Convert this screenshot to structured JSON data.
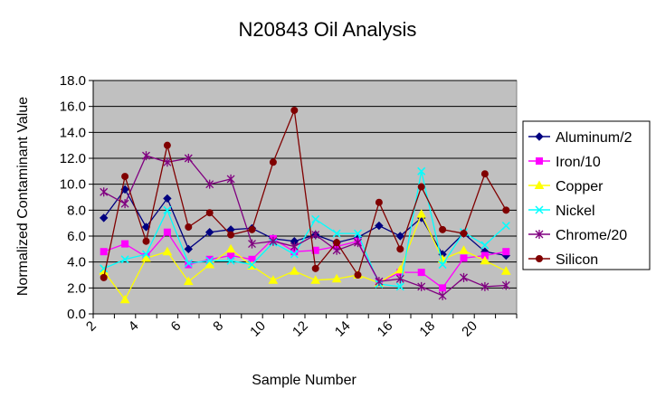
{
  "chart_data": {
    "type": "line",
    "title": "N20843 Oil Analysis",
    "xlabel": "Sample Number",
    "ylabel": "Normalized Contaminant Value",
    "xlim": [
      2,
      22
    ],
    "ylim": [
      0,
      18
    ],
    "yticks": [
      "0.0",
      "2.0",
      "4.0",
      "6.0",
      "8.0",
      "10.0",
      "12.0",
      "14.0",
      "16.0",
      "18.0"
    ],
    "xticks": [
      "2",
      "4",
      "6",
      "8",
      "10",
      "12",
      "14",
      "16",
      "18",
      "20"
    ],
    "x": [
      2.5,
      3.5,
      4.5,
      5.5,
      6.5,
      7.5,
      8.5,
      9.5,
      10.5,
      11.5,
      12.5,
      13.5,
      14.5,
      15.5,
      16.5,
      17.5,
      18.5,
      19.5,
      20.5,
      21.5
    ],
    "grid": "horizontal",
    "legend_position": "right",
    "plot_background": "#c0c0c0",
    "series": [
      {
        "name": "Aluminum/2",
        "color": "#000080",
        "marker": "diamond",
        "values": [
          7.4,
          9.6,
          6.7,
          8.9,
          5.0,
          6.3,
          6.5,
          6.6,
          5.8,
          5.6,
          6.1,
          5.5,
          5.9,
          6.8,
          6.0,
          7.4,
          4.6,
          6.2,
          4.8,
          4.5
        ]
      },
      {
        "name": "Iron/10",
        "color": "#ff00ff",
        "marker": "square",
        "values": [
          4.8,
          5.4,
          4.4,
          6.3,
          3.8,
          4.2,
          4.5,
          4.2,
          5.8,
          4.8,
          4.9,
          5.2,
          5.6,
          2.4,
          3.2,
          3.2,
          2.0,
          4.3,
          4.5,
          4.8
        ]
      },
      {
        "name": "Copper",
        "color": "#ffff00",
        "marker": "triangle",
        "values": [
          3.3,
          1.1,
          4.3,
          4.8,
          2.5,
          3.8,
          5.0,
          3.7,
          2.6,
          3.3,
          2.6,
          2.7,
          3.0,
          2.4,
          3.4,
          7.7,
          4.2,
          4.9,
          4.1,
          3.3
        ]
      },
      {
        "name": "Nickel",
        "color": "#00ffff",
        "marker": "x",
        "values": [
          3.5,
          4.2,
          4.6,
          8.0,
          3.9,
          4.1,
          4.1,
          3.8,
          5.5,
          4.6,
          7.3,
          6.2,
          6.2,
          2.3,
          2.1,
          11.0,
          3.8,
          6.3,
          5.3,
          6.8
        ]
      },
      {
        "name": "Chrome/20",
        "color": "#800080",
        "marker": "star",
        "values": [
          9.4,
          8.5,
          12.2,
          11.7,
          12.0,
          10.0,
          10.4,
          5.4,
          5.6,
          5.2,
          6.1,
          4.9,
          5.5,
          2.5,
          2.7,
          2.1,
          1.4,
          2.8,
          2.1,
          2.2
        ]
      },
      {
        "name": "Silicon",
        "color": "#800000",
        "marker": "circle",
        "values": [
          2.8,
          10.6,
          5.6,
          13.0,
          6.7,
          7.8,
          6.1,
          6.5,
          11.7,
          15.7,
          3.5,
          5.5,
          3.0,
          8.6,
          5.0,
          9.8,
          6.5,
          6.2,
          10.8,
          8.0
        ]
      }
    ]
  }
}
